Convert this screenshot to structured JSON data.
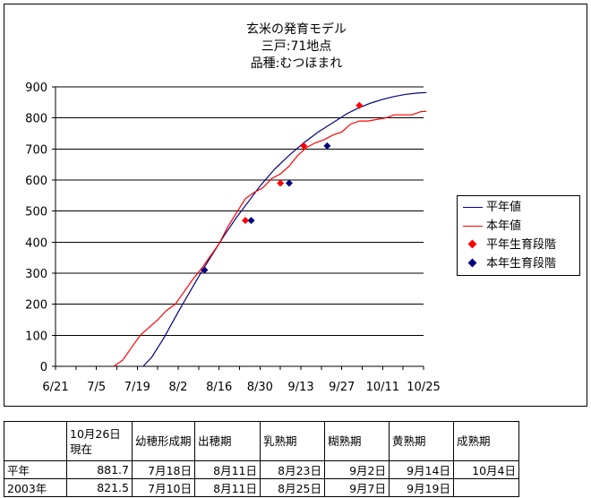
{
  "chart_data": {
    "type": "line",
    "title_lines": [
      "玄米の発育モデル",
      "三戸:71地点",
      "品種:むつほまれ"
    ],
    "xlabel": "",
    "ylabel": "",
    "x_tick_labels": [
      "6/21",
      "7/5",
      "7/19",
      "8/2",
      "8/16",
      "8/30",
      "9/13",
      "9/27",
      "10/11",
      "10/25"
    ],
    "x_tick_days": [
      0,
      14,
      28,
      42,
      56,
      70,
      84,
      98,
      112,
      126
    ],
    "xlim_days": [
      0,
      126
    ],
    "x_day0": "6/21",
    "ylim": [
      0,
      900
    ],
    "y_ticks": [
      0,
      100,
      200,
      300,
      400,
      500,
      600,
      700,
      800,
      900
    ],
    "grid": "horizontal",
    "legend_placement": "right",
    "series": [
      {
        "name": "平年値",
        "kind": "line",
        "color": "#000080",
        "x": [
          30,
          33,
          37,
          42,
          46,
          50,
          54,
          58,
          62,
          66,
          70,
          75,
          80,
          85,
          90,
          95,
          100,
          104,
          108,
          112,
          116,
          120,
          124,
          127
        ],
        "y": [
          0,
          30,
          90,
          175,
          240,
          305,
          365,
          425,
          480,
          530,
          580,
          635,
          680,
          720,
          755,
          785,
          815,
          833,
          848,
          860,
          869,
          876,
          880,
          881.7
        ]
      },
      {
        "name": "本年値",
        "kind": "line",
        "color": "#ff0000",
        "x": [
          20,
          23,
          26,
          29,
          32,
          35,
          38,
          41,
          44,
          47,
          50,
          53,
          56,
          59,
          62,
          65,
          68,
          71,
          74,
          77,
          80,
          83,
          86,
          89,
          92,
          95,
          98,
          101,
          104,
          107,
          110,
          113,
          116,
          119,
          122,
          125,
          127
        ],
        "y": [
          0,
          20,
          60,
          100,
          125,
          150,
          180,
          200,
          240,
          280,
          315,
          355,
          395,
          450,
          495,
          540,
          560,
          575,
          605,
          620,
          645,
          680,
          705,
          720,
          730,
          745,
          755,
          780,
          790,
          790,
          795,
          800,
          810,
          810,
          810,
          820,
          821.5
        ]
      },
      {
        "name": "平年生育段階",
        "kind": "marker",
        "color": "#ff0000",
        "x": [
          51,
          65,
          77,
          85,
          104
        ],
        "y": [
          310,
          470,
          590,
          710,
          840
        ]
      },
      {
        "name": "本年生育段階",
        "kind": "marker",
        "color": "#000080",
        "x": [
          51,
          67,
          80,
          93
        ],
        "y": [
          310,
          470,
          590,
          710
        ]
      }
    ]
  },
  "stage_table": {
    "headers": [
      "",
      "10月26日現在",
      "幼穂形成期",
      "出穂期",
      "乳熟期",
      "糊熟期",
      "黄熟期",
      "成熟期"
    ],
    "rows": [
      [
        "平年",
        "881.7",
        "7月18日",
        "8月11日",
        "8月23日",
        "9月2日",
        "9月14日",
        "10月4日"
      ],
      [
        "2003年",
        "821.5",
        "7月10日",
        "8月11日",
        "8月25日",
        "9月7日",
        "9月19日",
        ""
      ]
    ]
  }
}
